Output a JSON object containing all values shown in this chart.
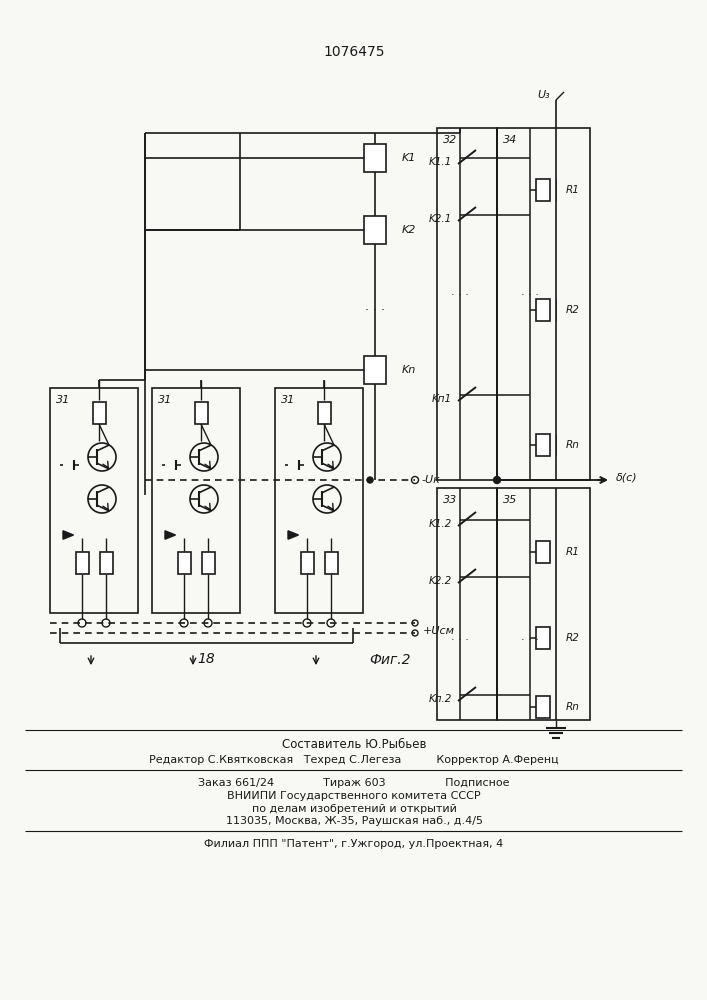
{
  "patent_number": "1076475",
  "fig_label": "Фиг.2",
  "bg_color": "#f8f8f4",
  "line_color": "#1a1a1a",
  "footer_line0": "Составитель Ю.Рыбьев",
  "footer_line1": "Редактор С.Квятковская   Техред С.Легеза          Корректор А.Ференц",
  "footer_line2": "Заказ 661/24              Тираж 603                 Подписное",
  "footer_line3": "ВНИИПИ Государственного комитета СССР",
  "footer_line4": "по делам изобретений и открытий",
  "footer_line5": "113035, Москва, Ж-35, Раушская наб., д.4/5",
  "footer_line6": "Филиал ППП \"Патент\", г.Ужгород, ул.Проектная, 4"
}
